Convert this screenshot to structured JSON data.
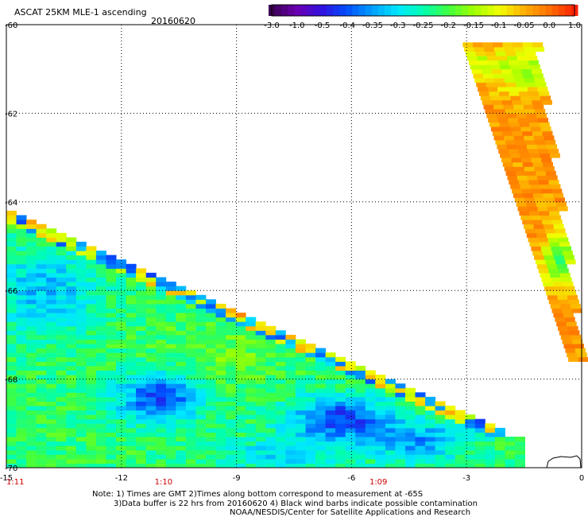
{
  "header": {
    "title": "ASCAT 25KM MLE-1 ascending",
    "date": "20160620"
  },
  "chart_data": {
    "type": "heatmap",
    "title": "ASCAT 25KM MLE-1 ascending",
    "subtitle": "20160620",
    "xlim": [
      -15,
      0
    ],
    "ylim": [
      -70,
      -60
    ],
    "x_ticks": [
      -15,
      -12,
      -9,
      -6,
      -3,
      0
    ],
    "x_tick_labels": [
      "-15",
      "-12",
      "-9",
      "-6",
      "-3",
      "0"
    ],
    "y_ticks": [
      -60,
      -62,
      -64,
      -66,
      -68,
      -70
    ],
    "y_tick_labels": [
      "-60",
      "-62",
      "-64",
      "-66",
      "-68",
      "-70"
    ],
    "grid": true,
    "colorbar": {
      "ticks": [
        -3.0,
        -1.0,
        -0.5,
        -0.4,
        -0.35,
        -0.3,
        -0.25,
        -0.2,
        -0.15,
        -0.1,
        -0.05,
        0.0,
        1.0
      ],
      "tick_labels": [
        "-3.0",
        "-1.0",
        "-0.5",
        "-0.4",
        "-0.35",
        "-0.3",
        "-0.25",
        "-0.2",
        "-0.15",
        "-0.1",
        "-0.05",
        "0.0",
        "1.0"
      ],
      "colors": [
        "#3a0050",
        "#6a00b0",
        "#3010e0",
        "#0050ff",
        "#00a0ff",
        "#00e8ff",
        "#00ffb0",
        "#40ff40",
        "#a0ff00",
        "#f0ff00",
        "#ffb000",
        "#ff7000",
        "#ff2000"
      ]
    },
    "time_labels": [
      {
        "x": -15,
        "label": "1:11"
      },
      {
        "x": -10.9,
        "label": "1:10"
      },
      {
        "x": -5.3,
        "label": "1:09"
      }
    ],
    "swaths": [
      {
        "name": "western swath",
        "region": "south of diagonal edge from (-15,-64.2) to (-2.2,-69.1)",
        "dominant_values": "-0.25 to -0.15",
        "low_value_patches": [
          {
            "center": [
              -11.0,
              -68.4
            ],
            "value": "-0.5 to -0.4"
          },
          {
            "center": [
              -6.3,
              -68.9
            ],
            "value": "-0.5 to -0.4"
          },
          {
            "center": [
              -4.2,
              -69.3
            ],
            "value": "-0.4 to -0.35"
          },
          {
            "center": [
              -14.0,
              -66.0
            ],
            "value": "-0.35 to -0.3"
          }
        ]
      },
      {
        "name": "eastern swath",
        "region": "north-east strip from (-3.1,-60.5) to (-0.1,-67.6)",
        "dominant_values": "-0.05 to 0.0",
        "low_value_patches": [
          {
            "center": [
              -1.5,
              -61.0
            ],
            "value": "-0.15 to -0.1"
          },
          {
            "center": [
              -0.6,
              -65.3
            ],
            "value": "-0.2 to -0.15"
          }
        ]
      }
    ],
    "annotations": [
      "Note: 1) Times are GMT 2)Times along bottom correspond to measurement at -65S",
      "3)Data buffer is 22 hrs from 20160620 4) Black wind barbs indicate possible contamination",
      "NOAA/NESDIS/Center for Satellite Applications and Research"
    ]
  }
}
